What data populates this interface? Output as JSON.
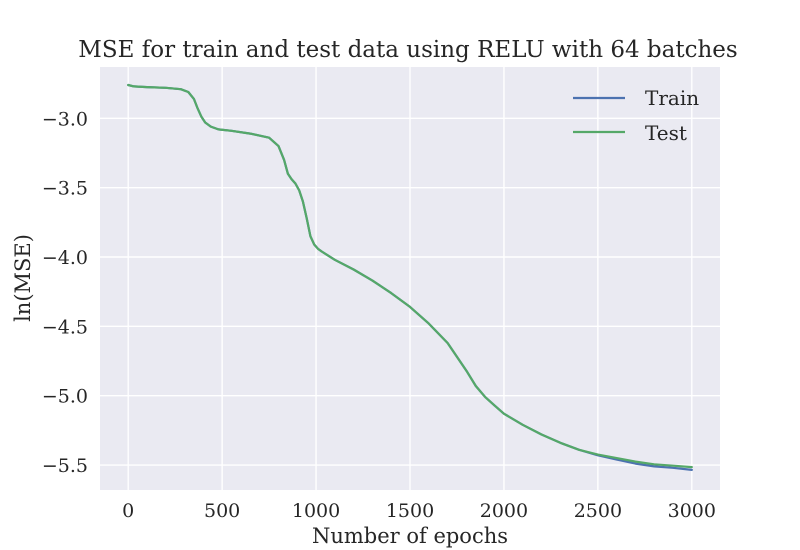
{
  "chart_data": {
    "type": "line",
    "title": "MSE for train and test data using RELU with 64 batches",
    "xlabel": "Number of epochs",
    "ylabel": "ln(MSE)",
    "xlim": [
      -150,
      3150
    ],
    "ylim": [
      -5.68,
      -2.63
    ],
    "xticks": [
      0,
      500,
      1000,
      1500,
      2000,
      2500,
      3000
    ],
    "xtick_labels": [
      "0",
      "500",
      "1000",
      "1500",
      "2000",
      "2500",
      "3000"
    ],
    "yticks": [
      -3.0,
      -3.5,
      -4.0,
      -4.5,
      -5.0,
      -5.5
    ],
    "ytick_labels": [
      "−3.0",
      "−3.5",
      "−4.0",
      "−4.5",
      "−5.0",
      "−5.5"
    ],
    "grid": true,
    "legend_position": "top-right",
    "x": [
      0,
      30,
      100,
      200,
      280,
      320,
      350,
      370,
      390,
      410,
      440,
      480,
      550,
      650,
      750,
      800,
      830,
      850,
      870,
      890,
      910,
      930,
      950,
      970,
      990,
      1010,
      1030,
      1100,
      1200,
      1300,
      1400,
      1500,
      1600,
      1700,
      1800,
      1850,
      1900,
      1950,
      2000,
      2100,
      2200,
      2300,
      2400,
      2500,
      2600,
      2700,
      2800,
      2900,
      3000
    ],
    "series": [
      {
        "name": "Train",
        "color": "#4c72b0",
        "values": [
          -2.76,
          -2.77,
          -2.775,
          -2.78,
          -2.79,
          -2.81,
          -2.86,
          -2.93,
          -2.99,
          -3.03,
          -3.06,
          -3.08,
          -3.09,
          -3.11,
          -3.14,
          -3.2,
          -3.3,
          -3.4,
          -3.44,
          -3.47,
          -3.52,
          -3.6,
          -3.72,
          -3.85,
          -3.91,
          -3.94,
          -3.96,
          -4.02,
          -4.09,
          -4.17,
          -4.26,
          -4.36,
          -4.48,
          -4.62,
          -4.82,
          -4.93,
          -5.01,
          -5.07,
          -5.13,
          -5.21,
          -5.28,
          -5.34,
          -5.39,
          -5.43,
          -5.46,
          -5.49,
          -5.51,
          -5.52,
          -5.535
        ]
      },
      {
        "name": "Test",
        "color": "#55a868",
        "values": [
          -2.76,
          -2.77,
          -2.775,
          -2.78,
          -2.79,
          -2.81,
          -2.86,
          -2.93,
          -2.99,
          -3.03,
          -3.06,
          -3.08,
          -3.09,
          -3.11,
          -3.14,
          -3.2,
          -3.3,
          -3.4,
          -3.44,
          -3.47,
          -3.52,
          -3.6,
          -3.72,
          -3.85,
          -3.91,
          -3.94,
          -3.96,
          -4.02,
          -4.09,
          -4.17,
          -4.26,
          -4.36,
          -4.48,
          -4.62,
          -4.82,
          -4.93,
          -5.01,
          -5.07,
          -5.13,
          -5.21,
          -5.28,
          -5.34,
          -5.39,
          -5.425,
          -5.45,
          -5.475,
          -5.495,
          -5.505,
          -5.515
        ]
      }
    ]
  }
}
